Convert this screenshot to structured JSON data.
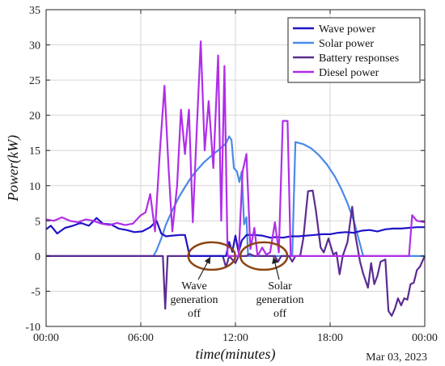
{
  "chart_data": {
    "type": "line",
    "xlabel": "time(minutes)",
    "ylabel": "Power(kW)",
    "date_label": "Mar 03, 2023",
    "xlim": [
      0,
      24
    ],
    "ylim": [
      -10,
      35
    ],
    "x_ticks": [
      {
        "value": 0,
        "label": "00:00"
      },
      {
        "value": 6,
        "label": "06:00"
      },
      {
        "value": 12,
        "label": "12:00"
      },
      {
        "value": 18,
        "label": "18:00"
      },
      {
        "value": 24,
        "label": "00:00"
      }
    ],
    "y_ticks": [
      {
        "value": -10,
        "label": "-10"
      },
      {
        "value": -5,
        "label": "-5"
      },
      {
        "value": 0,
        "label": "0"
      },
      {
        "value": 5,
        "label": "5"
      },
      {
        "value": 10,
        "label": "10"
      },
      {
        "value": 15,
        "label": "15"
      },
      {
        "value": 20,
        "label": "20"
      },
      {
        "value": 25,
        "label": "25"
      },
      {
        "value": 30,
        "label": "30"
      },
      {
        "value": 35,
        "label": "35"
      }
    ],
    "grid": true,
    "legend_position": "top-right",
    "series": [
      {
        "name": "Wave power",
        "color": "#1f14c8",
        "points": [
          [
            0,
            3.8
          ],
          [
            0.3,
            4.3
          ],
          [
            0.7,
            3.2
          ],
          [
            1.2,
            4.0
          ],
          [
            1.7,
            4.3
          ],
          [
            2.2,
            4.7
          ],
          [
            2.7,
            4.3
          ],
          [
            3.2,
            5.4
          ],
          [
            3.6,
            4.6
          ],
          [
            4.1,
            4.5
          ],
          [
            4.6,
            3.9
          ],
          [
            5.1,
            3.7
          ],
          [
            5.6,
            3.4
          ],
          [
            6.1,
            3.5
          ],
          [
            6.6,
            4.1
          ],
          [
            7.0,
            5.0
          ],
          [
            7.3,
            3.2
          ],
          [
            7.6,
            2.8
          ],
          [
            8.0,
            2.9
          ],
          [
            8.5,
            3.0
          ],
          [
            8.8,
            3.0
          ],
          [
            9.1,
            0
          ],
          [
            11.4,
            0
          ],
          [
            11.6,
            2.0
          ],
          [
            11.8,
            0.6
          ],
          [
            12.0,
            2.9
          ],
          [
            12.2,
            0.5
          ],
          [
            12.4,
            2.2
          ],
          [
            12.7,
            3.0
          ],
          [
            13.2,
            3.0
          ],
          [
            13.7,
            2.9
          ],
          [
            14.2,
            2.6
          ],
          [
            14.6,
            2.7
          ],
          [
            15.0,
            2.6
          ],
          [
            15.5,
            2.8
          ],
          [
            16.0,
            2.8
          ],
          [
            16.5,
            2.9
          ],
          [
            17.0,
            3.0
          ],
          [
            17.5,
            3.1
          ],
          [
            18.0,
            3.1
          ],
          [
            18.5,
            3.3
          ],
          [
            19.0,
            3.4
          ],
          [
            19.5,
            3.3
          ],
          [
            20.0,
            3.6
          ],
          [
            20.5,
            3.7
          ],
          [
            21.0,
            3.5
          ],
          [
            21.5,
            3.8
          ],
          [
            22.0,
            3.9
          ],
          [
            22.5,
            3.9
          ],
          [
            23.0,
            4.0
          ],
          [
            23.5,
            4.1
          ],
          [
            24.0,
            4.1
          ]
        ]
      },
      {
        "name": "Solar power",
        "color": "#4a8ae8",
        "points": [
          [
            0,
            0
          ],
          [
            6.8,
            0
          ],
          [
            7.0,
            0.8
          ],
          [
            7.3,
            2.5
          ],
          [
            7.6,
            4.5
          ],
          [
            8.0,
            6.5
          ],
          [
            8.4,
            8.3
          ],
          [
            8.8,
            9.8
          ],
          [
            9.2,
            11.2
          ],
          [
            9.6,
            12.3
          ],
          [
            10.0,
            13.3
          ],
          [
            10.5,
            14.3
          ],
          [
            11.0,
            15.2
          ],
          [
            11.4,
            16.0
          ],
          [
            11.6,
            17.0
          ],
          [
            11.75,
            16.5
          ],
          [
            11.9,
            12.5
          ],
          [
            12.1,
            12.0
          ],
          [
            12.25,
            10.5
          ],
          [
            12.4,
            12.0
          ],
          [
            12.55,
            4.5
          ],
          [
            12.7,
            5.5
          ],
          [
            12.8,
            0
          ],
          [
            15.6,
            0
          ],
          [
            15.8,
            16.2
          ],
          [
            16.3,
            15.9
          ],
          [
            16.8,
            15.3
          ],
          [
            17.3,
            14.3
          ],
          [
            17.8,
            13.0
          ],
          [
            18.3,
            11.3
          ],
          [
            18.7,
            9.6
          ],
          [
            19.1,
            7.5
          ],
          [
            19.5,
            5.0
          ],
          [
            19.8,
            2.5
          ],
          [
            20.0,
            0.8
          ],
          [
            20.1,
            0
          ],
          [
            24.0,
            0
          ]
        ]
      },
      {
        "name": "Battery responses",
        "color": "#5b2c91",
        "points": [
          [
            0,
            0
          ],
          [
            7.4,
            0
          ],
          [
            7.55,
            -7.5
          ],
          [
            7.7,
            0
          ],
          [
            11.2,
            0
          ],
          [
            11.4,
            -1.6
          ],
          [
            11.6,
            0
          ],
          [
            12.0,
            -1.0
          ],
          [
            12.2,
            0
          ],
          [
            12.7,
            0
          ],
          [
            12.9,
            0.3
          ],
          [
            13.2,
            0
          ],
          [
            14.5,
            0
          ],
          [
            14.7,
            -0.8
          ],
          [
            14.9,
            0
          ],
          [
            15.4,
            0
          ],
          [
            15.6,
            -0.8
          ],
          [
            15.8,
            0
          ],
          [
            16.1,
            0
          ],
          [
            16.3,
            2.5
          ],
          [
            16.6,
            9.2
          ],
          [
            16.9,
            9.3
          ],
          [
            17.1,
            6.5
          ],
          [
            17.4,
            1.2
          ],
          [
            17.6,
            0.5
          ],
          [
            17.9,
            2.5
          ],
          [
            18.2,
            0.2
          ],
          [
            18.4,
            0.5
          ],
          [
            18.6,
            -2.6
          ],
          [
            18.8,
            0
          ],
          [
            19.1,
            2.0
          ],
          [
            19.4,
            7.0
          ],
          [
            19.6,
            3.0
          ],
          [
            19.9,
            -0.8
          ],
          [
            20.1,
            -2.5
          ],
          [
            20.4,
            -4.5
          ],
          [
            20.6,
            -1.0
          ],
          [
            20.8,
            -4.0
          ],
          [
            21.0,
            -2.8
          ],
          [
            21.2,
            -0.8
          ],
          [
            21.5,
            -0.5
          ],
          [
            21.7,
            -7.8
          ],
          [
            21.9,
            -8.5
          ],
          [
            22.1,
            -7.5
          ],
          [
            22.3,
            -6.0
          ],
          [
            22.5,
            -7.0
          ],
          [
            22.7,
            -6.0
          ],
          [
            22.9,
            -6.2
          ],
          [
            23.1,
            -4.0
          ],
          [
            23.3,
            -3.8
          ],
          [
            23.5,
            -2.0
          ],
          [
            23.7,
            -1.5
          ],
          [
            23.9,
            -0.5
          ],
          [
            24.0,
            0
          ]
        ]
      },
      {
        "name": "Diesel power",
        "color": "#b02ee8",
        "points": [
          [
            0,
            5.2
          ],
          [
            0.5,
            5.0
          ],
          [
            1.0,
            5.5
          ],
          [
            1.5,
            5.0
          ],
          [
            2.0,
            4.8
          ],
          [
            2.5,
            5.2
          ],
          [
            3.0,
            5.0
          ],
          [
            3.5,
            4.6
          ],
          [
            4.0,
            4.4
          ],
          [
            4.5,
            4.7
          ],
          [
            5.0,
            4.4
          ],
          [
            5.5,
            4.6
          ],
          [
            6.0,
            5.8
          ],
          [
            6.3,
            6.2
          ],
          [
            6.6,
            8.8
          ],
          [
            6.9,
            3.5
          ],
          [
            7.2,
            14.5
          ],
          [
            7.5,
            24.2
          ],
          [
            7.75,
            13.0
          ],
          [
            8.0,
            3.5
          ],
          [
            8.3,
            10.0
          ],
          [
            8.55,
            20.8
          ],
          [
            8.8,
            14.5
          ],
          [
            9.05,
            20.8
          ],
          [
            9.3,
            4.8
          ],
          [
            9.55,
            18.0
          ],
          [
            9.8,
            30.5
          ],
          [
            10.05,
            15.0
          ],
          [
            10.3,
            22.0
          ],
          [
            10.6,
            12.5
          ],
          [
            10.9,
            28.5
          ],
          [
            11.1,
            5.0
          ],
          [
            11.3,
            27.0
          ],
          [
            11.5,
            0
          ],
          [
            12.2,
            0
          ],
          [
            12.45,
            12.0
          ],
          [
            12.7,
            14.5
          ],
          [
            12.95,
            1.0
          ],
          [
            13.2,
            4.0
          ],
          [
            13.4,
            0
          ],
          [
            13.7,
            1.2
          ],
          [
            13.95,
            0.2
          ],
          [
            14.2,
            0.5
          ],
          [
            14.5,
            4.8
          ],
          [
            14.75,
            0.5
          ],
          [
            15.0,
            19.2
          ],
          [
            15.3,
            19.2
          ],
          [
            15.5,
            0
          ],
          [
            23.0,
            0
          ],
          [
            23.2,
            5.8
          ],
          [
            23.5,
            5.0
          ],
          [
            24.0,
            4.8
          ]
        ]
      }
    ],
    "annotations": [
      {
        "lines": [
          "Wave",
          "generation",
          "off"
        ],
        "ellipse_center": [
          10.5,
          0
        ],
        "color": "#8b4513"
      },
      {
        "lines": [
          "Solar",
          "generation",
          "off"
        ],
        "ellipse_center": [
          13.8,
          0
        ],
        "color": "#8b4513"
      }
    ]
  }
}
